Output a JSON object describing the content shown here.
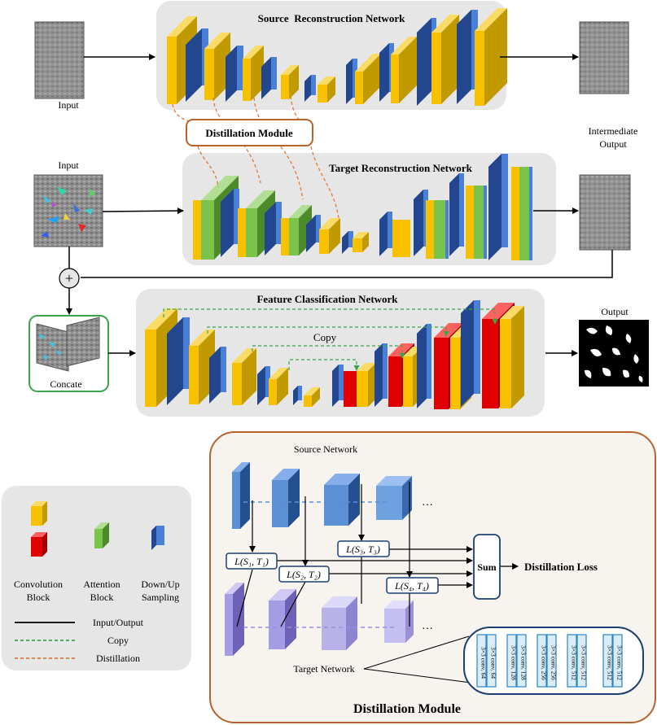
{
  "colors": {
    "conv_front": "#f7c100",
    "conv_side": "#c19a00",
    "conv_top": "#f9db66",
    "sample_front": "#4a7fd8",
    "sample_side": "#23478f",
    "attention_front": "#7bc44c",
    "attention_side": "#4c8a2a",
    "red_front": "#e00000",
    "red_side": "#a40000",
    "panel_bg": "#e6e6e6",
    "distill_border": "#b8632b",
    "copy_line": "#3aa34c",
    "distill_line": "#e07a3a",
    "src_cube": "#5b8fd6",
    "tgt_cube": "#b9b2e8",
    "conv_box": "#d9ecf7",
    "conv_box_border": "#2b86c8"
  },
  "labels": {
    "input_top": "Input",
    "input_mid": "Input",
    "intermediate_output_1": "Intermediate",
    "intermediate_output_2": "Output",
    "output": "Output",
    "source_net": "Source  Reconstruction Network",
    "target_net": "Target Reconstruction Network",
    "feature_net": "Feature Classification Network",
    "distillation_module_box": "Distillation Module",
    "copy": "Copy",
    "concate": "Concate",
    "plus": "+"
  },
  "legend": {
    "conv_1": "Convolution",
    "conv_2": "Block",
    "att_1": "Attention",
    "att_2": "Block",
    "down_1": "Down/Up",
    "down_2": "Sampling",
    "line_io": "Input/Output",
    "line_copy": "Copy",
    "line_distill": "Distillation"
  },
  "module": {
    "title": "Distillation Module",
    "source_network": "Source Network",
    "target_network": "Target Network",
    "ellipsis_top": "…",
    "ellipsis_bottom": "…",
    "loss1": "L(S₁, T₁)",
    "loss2": "L(S₂, T₂)",
    "loss3": "L(S₃, T₃)",
    "loss4": "L(S₄, T₄)",
    "sum": "Sum",
    "distillation_loss": "Distillation Loss",
    "conv_layers": [
      "3×3 conv, 64",
      "3×3 conv, 64",
      "3×3 conv, 128",
      "3×3 conv, 128",
      "3×3 conv, 256",
      "3×3 conv, 256",
      "3×3 conv, 512",
      "3×3 conv, 512",
      "3×3 conv, 512",
      "3×3 conv, 512"
    ]
  }
}
